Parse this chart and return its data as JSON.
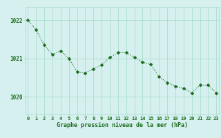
{
  "x": [
    0,
    1,
    2,
    3,
    4,
    5,
    6,
    7,
    8,
    9,
    10,
    11,
    12,
    13,
    14,
    15,
    16,
    17,
    18,
    19,
    20,
    21,
    22,
    23
  ],
  "y": [
    1022.0,
    1021.75,
    1021.35,
    1021.1,
    1021.2,
    1021.0,
    1020.65,
    1020.62,
    1020.73,
    1020.83,
    1021.03,
    1021.15,
    1021.15,
    1021.03,
    1020.9,
    1020.85,
    1020.52,
    1020.37,
    1020.27,
    1020.22,
    1020.1,
    1020.3,
    1020.3,
    1020.1
  ],
  "line_color": "#1a6b1a",
  "marker": "D",
  "marker_size": 2.5,
  "bg_color": "#d6f0f0",
  "grid_color": "#aaddcc",
  "grid_color_v": "#c8e8d8",
  "xlabel": "Graphe pression niveau de la mer (hPa)",
  "xlabel_color": "#1a6b1a",
  "tick_color": "#1a6b1a",
  "ylabel_ticks": [
    1020,
    1021,
    1022
  ],
  "xlim": [
    -0.3,
    23.3
  ],
  "ylim": [
    1019.55,
    1022.35
  ],
  "xticks": [
    0,
    1,
    2,
    3,
    4,
    5,
    6,
    7,
    8,
    9,
    10,
    11,
    12,
    13,
    14,
    15,
    16,
    17,
    18,
    19,
    20,
    21,
    22,
    23
  ]
}
